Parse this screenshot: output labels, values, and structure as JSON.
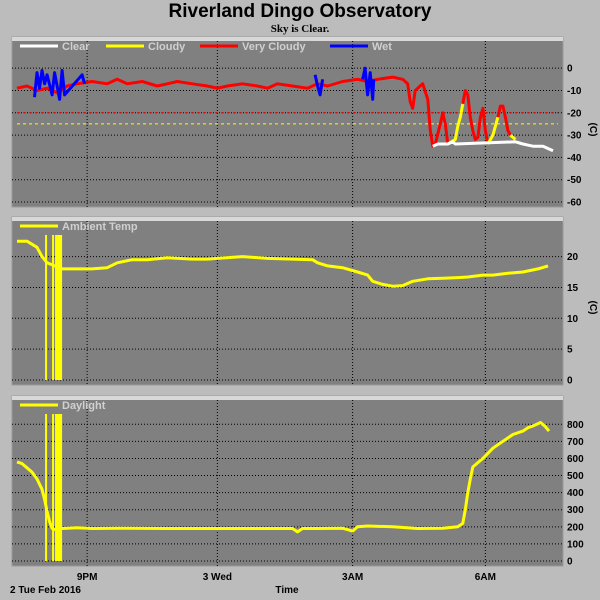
{
  "header": {
    "title": "Riverland Dingo Observatory",
    "subtitle": "Sky is Clear."
  },
  "footer": {
    "date_label": "2 Tue Feb 2016",
    "x_axis_label": "Time"
  },
  "x_ticks": [
    "9PM",
    "3 Wed",
    "3AM",
    "6AM"
  ],
  "colors": {
    "background": "#bcbcbc",
    "plot_bg": "#808080",
    "grid": "#000000",
    "clear": "#ffffff",
    "cloudy": "#ffff00",
    "very_cloudy": "#ff0000",
    "wet": "#0000ff"
  },
  "chart_data": [
    {
      "type": "line",
      "panel": "sky",
      "ylabel": "(C)",
      "ylim": [
        -60,
        5
      ],
      "yticks": [
        0,
        -10,
        -20,
        -30,
        -40,
        -50,
        -60
      ],
      "legend": [
        "Clear",
        "Cloudy",
        "Very Cloudy",
        "Wet"
      ],
      "thresholds": [
        {
          "y": -20,
          "color": "#ff0000"
        },
        {
          "y": -25,
          "color": "#ffff00"
        }
      ],
      "series": [
        {
          "name": "Very Cloudy",
          "color": "#ff0000",
          "points": [
            [
              0,
              -9
            ],
            [
              0.2,
              -8
            ],
            [
              0.4,
              -10
            ],
            [
              0.6,
              -9
            ],
            [
              0.8,
              -11
            ],
            [
              1.0,
              -8
            ],
            [
              1.2,
              -7
            ],
            [
              1.5,
              -6
            ],
            [
              1.8,
              -7
            ],
            [
              2.0,
              -5
            ],
            [
              2.2,
              -7
            ],
            [
              2.5,
              -6
            ],
            [
              2.8,
              -8
            ],
            [
              3.0,
              -7
            ],
            [
              3.2,
              -6
            ],
            [
              3.5,
              -7
            ],
            [
              3.8,
              -8
            ],
            [
              4.0,
              -9
            ],
            [
              4.2,
              -8
            ],
            [
              4.5,
              -7
            ],
            [
              4.8,
              -8
            ],
            [
              5.0,
              -9
            ],
            [
              5.2,
              -7
            ],
            [
              5.5,
              -8
            ],
            [
              5.8,
              -9
            ],
            [
              6.0,
              -7
            ],
            [
              6.2,
              -8
            ],
            [
              6.5,
              -6
            ],
            [
              6.8,
              -5
            ],
            [
              7.0,
              -6
            ],
            [
              7.2,
              -5
            ],
            [
              7.5,
              -4
            ],
            [
              7.7,
              -5
            ],
            [
              7.8,
              -7
            ],
            [
              7.85,
              -15
            ],
            [
              7.9,
              -18
            ],
            [
              7.95,
              -10
            ],
            [
              8.05,
              -8
            ],
            [
              8.1,
              -7
            ],
            [
              8.2,
              -14
            ],
            [
              8.25,
              -28
            ],
            [
              8.3,
              -35
            ],
            [
              8.35,
              -34
            ],
            [
              8.45,
              -25
            ],
            [
              8.5,
              -20
            ],
            [
              8.55,
              -25
            ],
            [
              8.6,
              -34
            ]
          ]
        },
        {
          "name": "Cloudy",
          "color": "#ffff00",
          "points": [
            [
              8.6,
              -34
            ],
            [
              8.75,
              -32
            ],
            [
              8.8,
              -26
            ],
            [
              8.85,
              -22
            ],
            [
              8.9,
              -16
            ]
          ]
        },
        {
          "name": "Very Cloudy",
          "color": "#ff0000",
          "points": [
            [
              8.9,
              -16
            ],
            [
              8.95,
              -10
            ],
            [
              9.0,
              -12
            ],
            [
              9.05,
              -22
            ],
            [
              9.1,
              -28
            ],
            [
              9.15,
              -32
            ],
            [
              9.2,
              -31
            ],
            [
              9.25,
              -22
            ],
            [
              9.3,
              -18
            ],
            [
              9.35,
              -28
            ],
            [
              9.4,
              -34
            ]
          ]
        },
        {
          "name": "Cloudy",
          "color": "#ffff00",
          "points": [
            [
              9.4,
              -34
            ],
            [
              9.5,
              -30
            ],
            [
              9.55,
              -26
            ],
            [
              9.6,
              -22
            ]
          ]
        },
        {
          "name": "Very Cloudy",
          "color": "#ff0000",
          "points": [
            [
              9.6,
              -22
            ],
            [
              9.65,
              -17
            ],
            [
              9.7,
              -17
            ],
            [
              9.75,
              -22
            ],
            [
              9.8,
              -28
            ],
            [
              9.85,
              -30
            ]
          ]
        },
        {
          "name": "Cloudy",
          "color": "#ffff00",
          "points": [
            [
              9.85,
              -30
            ],
            [
              9.9,
              -31
            ],
            [
              9.95,
              -32
            ]
          ]
        },
        {
          "name": "Clear",
          "color": "#ffffff",
          "points": [
            [
              8.3,
              -35
            ],
            [
              8.4,
              -34
            ],
            [
              8.6,
              -34
            ],
            [
              8.7,
              -33
            ],
            [
              8.75,
              -34
            ],
            [
              9.95,
              -33
            ],
            [
              10.1,
              -34
            ],
            [
              10.3,
              -35
            ],
            [
              10.5,
              -35
            ],
            [
              10.7,
              -37
            ]
          ]
        },
        {
          "name": "Wet",
          "color": "#0000ff",
          "points": [
            [
              0.35,
              -13
            ],
            [
              0.4,
              -2
            ],
            [
              0.45,
              -9
            ],
            [
              0.5,
              -1
            ],
            [
              0.55,
              -7
            ],
            [
              0.6,
              -3
            ],
            [
              0.7,
              -12
            ],
            [
              0.75,
              -2
            ],
            [
              0.85,
              -14
            ],
            [
              0.9,
              -1
            ],
            [
              0.95,
              -12
            ],
            [
              1.3,
              -3
            ],
            [
              1.35,
              -7
            ]
          ]
        },
        {
          "name": "Wet",
          "color": "#0000ff",
          "points": [
            [
              5.95,
              -3
            ],
            [
              6.0,
              -8
            ],
            [
              6.05,
              -12
            ],
            [
              6.1,
              -5
            ]
          ]
        },
        {
          "name": "Wet",
          "color": "#0000ff",
          "points": [
            [
              6.9,
              -5
            ],
            [
              6.95,
              0
            ],
            [
              7.0,
              -12
            ],
            [
              7.05,
              -2
            ],
            [
              7.1,
              -14
            ],
            [
              7.12,
              -5
            ]
          ]
        }
      ]
    },
    {
      "type": "line",
      "panel": "temperature",
      "ylabel": "(C)",
      "ylim": [
        0,
        23.5
      ],
      "yticks": [
        0,
        5,
        10,
        15,
        20
      ],
      "legend": [
        "Ambient Temp"
      ],
      "series": [
        {
          "name": "Ambient Temp",
          "color": "#ffff00",
          "points": [
            [
              0,
              22.5
            ],
            [
              0.2,
              22.5
            ],
            [
              0.4,
              21.5
            ],
            [
              0.5,
              20
            ],
            [
              0.6,
              19
            ],
            [
              0.75,
              18.5
            ],
            [
              0.9,
              18
            ],
            [
              1.2,
              18
            ],
            [
              1.5,
              18
            ],
            [
              1.8,
              18.2
            ],
            [
              2.0,
              19
            ],
            [
              2.3,
              19.5
            ],
            [
              2.6,
              19.5
            ],
            [
              3.0,
              19.8
            ],
            [
              3.5,
              19.6
            ],
            [
              3.8,
              19.6
            ],
            [
              4.0,
              19.7
            ],
            [
              4.5,
              20
            ],
            [
              5.0,
              19.7
            ],
            [
              5.5,
              19.6
            ],
            [
              5.9,
              19.5
            ],
            [
              6.0,
              19
            ],
            [
              6.2,
              18.5
            ],
            [
              6.5,
              18.2
            ],
            [
              6.8,
              17.5
            ],
            [
              7.0,
              17
            ],
            [
              7.1,
              16
            ],
            [
              7.3,
              15.5
            ],
            [
              7.5,
              15.2
            ],
            [
              7.7,
              15.3
            ],
            [
              7.9,
              16
            ],
            [
              8.2,
              16.4
            ],
            [
              8.5,
              16.5
            ],
            [
              8.8,
              16.6
            ],
            [
              9.0,
              16.7
            ],
            [
              9.3,
              17
            ],
            [
              9.5,
              17
            ],
            [
              9.8,
              17.3
            ],
            [
              10.1,
              17.5
            ],
            [
              10.4,
              18
            ],
            [
              10.6,
              18.5
            ]
          ]
        }
      ],
      "dropouts": [
        [
          0.56,
          0.6
        ],
        [
          0.7,
          0.74
        ],
        [
          0.76,
          0.9
        ]
      ]
    },
    {
      "type": "line",
      "panel": "daylight",
      "ylim": [
        0,
        860
      ],
      "yticks": [
        0,
        100,
        200,
        300,
        400,
        500,
        600,
        700,
        800
      ],
      "legend": [
        "Daylight"
      ],
      "series": [
        {
          "name": "Daylight",
          "color": "#ffff00",
          "points": [
            [
              0,
              580
            ],
            [
              0.1,
              570
            ],
            [
              0.2,
              545
            ],
            [
              0.3,
              520
            ],
            [
              0.4,
              480
            ],
            [
              0.5,
              420
            ],
            [
              0.55,
              360
            ],
            [
              0.6,
              290
            ],
            [
              0.65,
              230
            ],
            [
              0.7,
              190
            ],
            [
              0.75,
              185
            ],
            [
              0.9,
              190
            ],
            [
              1.2,
              195
            ],
            [
              1.5,
              190
            ],
            [
              2.0,
              192
            ],
            [
              3.0,
              190
            ],
            [
              4.0,
              190
            ],
            [
              5.0,
              190
            ],
            [
              5.5,
              190
            ],
            [
              5.6,
              170
            ],
            [
              5.7,
              190
            ],
            [
              6.0,
              190
            ],
            [
              6.5,
              192
            ],
            [
              6.7,
              175
            ],
            [
              6.8,
              200
            ],
            [
              7.0,
              205
            ],
            [
              7.5,
              200
            ],
            [
              8.0,
              190
            ],
            [
              8.5,
              192
            ],
            [
              8.8,
              200
            ],
            [
              8.9,
              220
            ],
            [
              8.95,
              300
            ],
            [
              9.0,
              400
            ],
            [
              9.05,
              480
            ],
            [
              9.1,
              550
            ],
            [
              9.3,
              600
            ],
            [
              9.5,
              660
            ],
            [
              9.7,
              700
            ],
            [
              9.9,
              740
            ],
            [
              10.1,
              760
            ],
            [
              10.2,
              780
            ],
            [
              10.3,
              790
            ],
            [
              10.45,
              810
            ],
            [
              10.55,
              785
            ],
            [
              10.62,
              760
            ]
          ]
        }
      ],
      "dropouts": [
        [
          0.56,
          0.6
        ],
        [
          0.7,
          0.74
        ],
        [
          0.76,
          0.9
        ]
      ]
    }
  ]
}
